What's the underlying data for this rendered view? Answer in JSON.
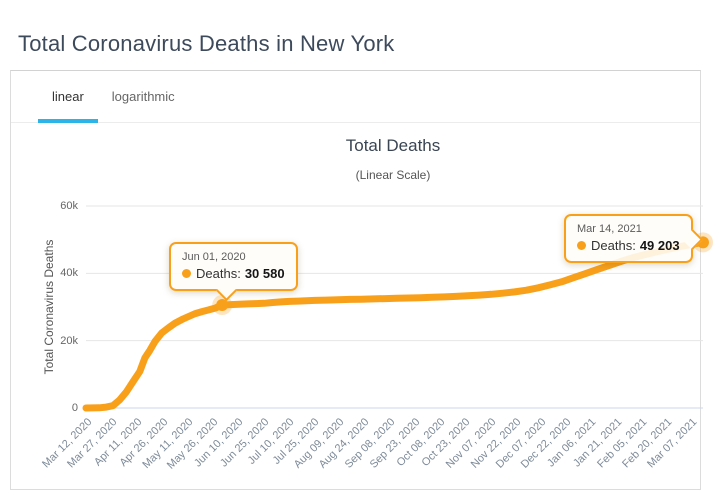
{
  "page": {
    "title": "Total Coronavirus Deaths in New York"
  },
  "tabs": [
    {
      "label": "linear",
      "active": true
    },
    {
      "label": "logarithmic",
      "active": false
    }
  ],
  "theme": {
    "accent_blue": "#2cb4e9",
    "line_orange": "#f9a01b",
    "grid_color": "#e6e6e6",
    "axis_line_color": "#ccd6eb"
  },
  "chart_data": {
    "type": "line",
    "title": "Total Deaths",
    "subtitle": "(Linear Scale)",
    "ylabel": "Total Coronavirus Deaths",
    "series_name": "Deaths",
    "line_color": "#f9a01b",
    "ylim": [
      0,
      60000
    ],
    "grid": true,
    "yticks": [
      {
        "value": 0,
        "label": "0"
      },
      {
        "value": 20000,
        "label": "20k"
      },
      {
        "value": 40000,
        "label": "40k"
      },
      {
        "value": 60000,
        "label": "60k"
      }
    ],
    "x_range": [
      "2020-03-12",
      "2021-03-14"
    ],
    "x_ticks": [
      {
        "date": "2020-03-12",
        "label": "Mar 12, 2020"
      },
      {
        "date": "2020-03-27",
        "label": "Mar 27, 2020"
      },
      {
        "date": "2020-04-11",
        "label": "Apr 11, 2020"
      },
      {
        "date": "2020-04-26",
        "label": "Apr 26, 2020"
      },
      {
        "date": "2020-05-11",
        "label": "May 11, 2020"
      },
      {
        "date": "2020-05-26",
        "label": "May 26, 2020"
      },
      {
        "date": "2020-06-10",
        "label": "Jun 10, 2020"
      },
      {
        "date": "2020-06-25",
        "label": "Jun 25, 2020"
      },
      {
        "date": "2020-07-10",
        "label": "Jul 10, 2020"
      },
      {
        "date": "2020-07-25",
        "label": "Jul 25, 2020"
      },
      {
        "date": "2020-08-09",
        "label": "Aug 09, 2020"
      },
      {
        "date": "2020-08-24",
        "label": "Aug 24, 2020"
      },
      {
        "date": "2020-09-08",
        "label": "Sep 08, 2020"
      },
      {
        "date": "2020-09-23",
        "label": "Sep 23, 2020"
      },
      {
        "date": "2020-10-08",
        "label": "Oct 08, 2020"
      },
      {
        "date": "2020-10-23",
        "label": "Oct 23, 2020"
      },
      {
        "date": "2020-11-07",
        "label": "Nov 07, 2020"
      },
      {
        "date": "2020-11-22",
        "label": "Nov 22, 2020"
      },
      {
        "date": "2020-12-07",
        "label": "Dec 07, 2020"
      },
      {
        "date": "2020-12-22",
        "label": "Dec 22, 2020"
      },
      {
        "date": "2021-01-06",
        "label": "Jan 06, 2021"
      },
      {
        "date": "2021-01-21",
        "label": "Jan 21, 2021"
      },
      {
        "date": "2021-02-05",
        "label": "Feb 05, 2021"
      },
      {
        "date": "2021-02-20",
        "label": "Feb 20, 2021"
      },
      {
        "date": "2021-03-07",
        "label": "Mar 07, 2021"
      }
    ],
    "points": [
      {
        "date": "2020-03-12",
        "deaths": 0
      },
      {
        "date": "2020-03-16",
        "deaths": 17
      },
      {
        "date": "2020-03-20",
        "deaths": 57
      },
      {
        "date": "2020-03-24",
        "deaths": 271
      },
      {
        "date": "2020-03-28",
        "deaths": 672
      },
      {
        "date": "2020-04-01",
        "deaths": 2373
      },
      {
        "date": "2020-04-05",
        "deaths": 4758
      },
      {
        "date": "2020-04-09",
        "deaths": 7844
      },
      {
        "date": "2020-04-13",
        "deaths": 10842
      },
      {
        "date": "2020-04-16",
        "deaths": 14832
      },
      {
        "date": "2020-04-19",
        "deaths": 17131
      },
      {
        "date": "2020-04-22",
        "deaths": 19710
      },
      {
        "date": "2020-04-26",
        "deaths": 22275
      },
      {
        "date": "2020-04-30",
        "deaths": 23780
      },
      {
        "date": "2020-05-04",
        "deaths": 25204
      },
      {
        "date": "2020-05-08",
        "deaths": 26243
      },
      {
        "date": "2020-05-12",
        "deaths": 27175
      },
      {
        "date": "2020-05-16",
        "deaths": 28049
      },
      {
        "date": "2020-05-20",
        "deaths": 28636
      },
      {
        "date": "2020-05-24",
        "deaths": 29141
      },
      {
        "date": "2020-05-28",
        "deaths": 29710
      },
      {
        "date": "2020-06-01",
        "deaths": 30580
      },
      {
        "date": "2020-06-06",
        "deaths": 30700
      },
      {
        "date": "2020-06-11",
        "deaths": 30820
      },
      {
        "date": "2020-06-16",
        "deaths": 30920
      },
      {
        "date": "2020-06-21",
        "deaths": 31010
      },
      {
        "date": "2020-06-26",
        "deaths": 31100
      },
      {
        "date": "2020-07-01",
        "deaths": 31350
      },
      {
        "date": "2020-07-06",
        "deaths": 31500
      },
      {
        "date": "2020-07-11",
        "deaths": 31650
      },
      {
        "date": "2020-07-16",
        "deaths": 31750
      },
      {
        "date": "2020-07-21",
        "deaths": 31850
      },
      {
        "date": "2020-07-26",
        "deaths": 31950
      },
      {
        "date": "2020-08-02",
        "deaths": 32050
      },
      {
        "date": "2020-08-09",
        "deaths": 32150
      },
      {
        "date": "2020-08-16",
        "deaths": 32250
      },
      {
        "date": "2020-08-23",
        "deaths": 32330
      },
      {
        "date": "2020-08-30",
        "deaths": 32420
      },
      {
        "date": "2020-09-06",
        "deaths": 32500
      },
      {
        "date": "2020-09-13",
        "deaths": 32590
      },
      {
        "date": "2020-09-20",
        "deaths": 32670
      },
      {
        "date": "2020-09-27",
        "deaths": 32760
      },
      {
        "date": "2020-10-04",
        "deaths": 32870
      },
      {
        "date": "2020-10-11",
        "deaths": 33000
      },
      {
        "date": "2020-10-18",
        "deaths": 33150
      },
      {
        "date": "2020-10-25",
        "deaths": 33320
      },
      {
        "date": "2020-11-01",
        "deaths": 33520
      },
      {
        "date": "2020-11-08",
        "deaths": 33780
      },
      {
        "date": "2020-11-15",
        "deaths": 34100
      },
      {
        "date": "2020-11-22",
        "deaths": 34500
      },
      {
        "date": "2020-11-29",
        "deaths": 35000
      },
      {
        "date": "2020-12-06",
        "deaths": 35700
      },
      {
        "date": "2020-12-13",
        "deaths": 36550
      },
      {
        "date": "2020-12-20",
        "deaths": 37500
      },
      {
        "date": "2020-12-27",
        "deaths": 38700
      },
      {
        "date": "2021-01-03",
        "deaths": 39900
      },
      {
        "date": "2021-01-10",
        "deaths": 41100
      },
      {
        "date": "2021-01-17",
        "deaths": 42300
      },
      {
        "date": "2021-01-24",
        "deaths": 43500
      },
      {
        "date": "2021-01-31",
        "deaths": 44600
      },
      {
        "date": "2021-02-07",
        "deaths": 45500
      },
      {
        "date": "2021-02-14",
        "deaths": 46350
      },
      {
        "date": "2021-02-21",
        "deaths": 47150
      },
      {
        "date": "2021-02-28",
        "deaths": 47900
      },
      {
        "date": "2021-03-07",
        "deaths": 48600
      },
      {
        "date": "2021-03-14",
        "deaths": 49203
      }
    ],
    "tooltips": [
      {
        "point_date": "2020-06-01",
        "date_label": "Jun 01, 2020",
        "series_label": "Deaths:",
        "value": 30580,
        "value_label": "30 580"
      },
      {
        "point_date": "2021-03-14",
        "date_label": "Mar 14, 2021",
        "series_label": "Deaths:",
        "value": 49203,
        "value_label": "49 203"
      }
    ]
  }
}
